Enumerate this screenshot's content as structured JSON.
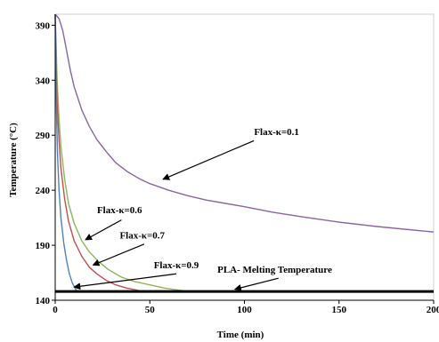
{
  "chart_data": {
    "type": "line",
    "xlabel": "Time (min)",
    "ylabel": "Temperature (°C)",
    "xlim": [
      0,
      200
    ],
    "ylim": [
      140,
      400
    ],
    "x_ticks": [
      "0",
      "50",
      "100",
      "150",
      "200"
    ],
    "y_ticks": [
      "140",
      "190",
      "240",
      "290",
      "340",
      "390"
    ],
    "grid": false,
    "legend": "none",
    "series": [
      {
        "name": "Flax-κ=0.1",
        "color": "#8a64a8",
        "points": [
          [
            0,
            400
          ],
          [
            2,
            396
          ],
          [
            4,
            385
          ],
          [
            6,
            367
          ],
          [
            8,
            349
          ],
          [
            10,
            334
          ],
          [
            14,
            313
          ],
          [
            18,
            298
          ],
          [
            22,
            286
          ],
          [
            27,
            275
          ],
          [
            32,
            265
          ],
          [
            38,
            257
          ],
          [
            45,
            250
          ],
          [
            50,
            246
          ],
          [
            60,
            240
          ],
          [
            70,
            235
          ],
          [
            80,
            231
          ],
          [
            90,
            228
          ],
          [
            100,
            225
          ],
          [
            115,
            220
          ],
          [
            130,
            216
          ],
          [
            150,
            211
          ],
          [
            170,
            207
          ],
          [
            200,
            202
          ]
        ]
      },
      {
        "name": "Flax-κ=0.6",
        "color": "#8db65a",
        "points": [
          [
            0,
            400
          ],
          [
            0.5,
            370
          ],
          [
            1,
            340
          ],
          [
            2,
            305
          ],
          [
            3,
            280
          ],
          [
            5,
            250
          ],
          [
            7,
            228
          ],
          [
            10,
            210
          ],
          [
            14,
            194
          ],
          [
            18,
            184
          ],
          [
            23,
            175
          ],
          [
            28,
            168
          ],
          [
            35,
            161
          ],
          [
            42,
            157
          ],
          [
            50,
            154
          ],
          [
            58,
            151
          ],
          [
            64,
            149.5
          ],
          [
            70,
            148
          ]
        ]
      },
      {
        "name": "Flax-κ=0.7",
        "color": "#c0504d",
        "points": [
          [
            0,
            400
          ],
          [
            0.5,
            355
          ],
          [
            1,
            320
          ],
          [
            2,
            285
          ],
          [
            3,
            260
          ],
          [
            5,
            232
          ],
          [
            7,
            212
          ],
          [
            10,
            194
          ],
          [
            14,
            180
          ],
          [
            18,
            170
          ],
          [
            22,
            164
          ],
          [
            27,
            158
          ],
          [
            32,
            154
          ],
          [
            38,
            151
          ],
          [
            44,
            149
          ]
        ]
      },
      {
        "name": "Flax-κ=0.9",
        "color": "#4f81bd",
        "points": [
          [
            0,
            400
          ],
          [
            0.3,
            350
          ],
          [
            0.7,
            310
          ],
          [
            1.2,
            275
          ],
          [
            2,
            240
          ],
          [
            3,
            215
          ],
          [
            4.5,
            192
          ],
          [
            6,
            176
          ],
          [
            7.5,
            164
          ],
          [
            9,
            156
          ],
          [
            10.5,
            151
          ],
          [
            11.5,
            148
          ]
        ]
      },
      {
        "name": "PLA- Melting Temperature",
        "color": "#000000",
        "points": [
          [
            0,
            148
          ],
          [
            200,
            148
          ]
        ]
      }
    ],
    "annotations": [
      {
        "text": "Flax-κ=0.1",
        "label_at": [
          117,
          290
        ],
        "arrow_from": [
          105,
          285
        ],
        "arrow_to": [
          57,
          250
        ]
      },
      {
        "text": "Flax-κ=0.6",
        "label_at": [
          34,
          219
        ],
        "arrow_from": [
          35,
          213
        ],
        "arrow_to": [
          16,
          195
        ]
      },
      {
        "text": "Flax-κ=0.7",
        "label_at": [
          46,
          196
        ],
        "arrow_from": [
          47,
          191
        ],
        "arrow_to": [
          20,
          172
        ]
      },
      {
        "text": "Flax-κ=0.9",
        "label_at": [
          64,
          169
        ],
        "arrow_from": [
          64,
          164
        ],
        "arrow_to": [
          10,
          152
        ]
      },
      {
        "text": "PLA- Melting Temperature",
        "label_at": [
          116,
          165
        ],
        "arrow_from": [
          118,
          160
        ],
        "arrow_to": [
          95,
          150
        ]
      }
    ]
  }
}
